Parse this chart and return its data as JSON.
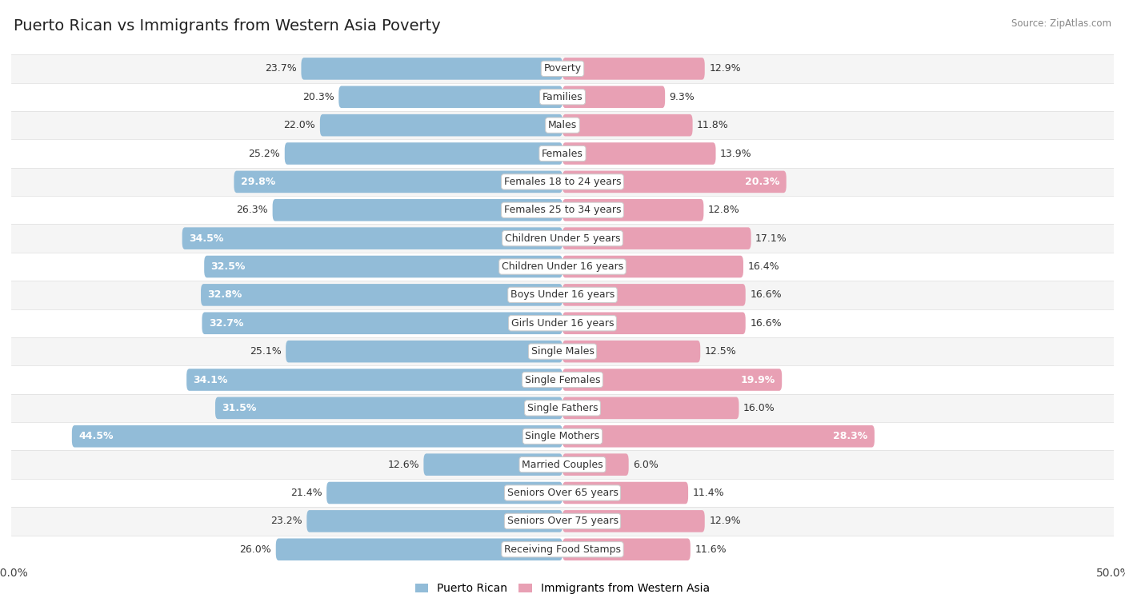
{
  "title": "Puerto Rican vs Immigrants from Western Asia Poverty",
  "source": "Source: ZipAtlas.com",
  "categories": [
    "Poverty",
    "Families",
    "Males",
    "Females",
    "Females 18 to 24 years",
    "Females 25 to 34 years",
    "Children Under 5 years",
    "Children Under 16 years",
    "Boys Under 16 years",
    "Girls Under 16 years",
    "Single Males",
    "Single Females",
    "Single Fathers",
    "Single Mothers",
    "Married Couples",
    "Seniors Over 65 years",
    "Seniors Over 75 years",
    "Receiving Food Stamps"
  ],
  "puerto_rican": [
    23.7,
    20.3,
    22.0,
    25.2,
    29.8,
    26.3,
    34.5,
    32.5,
    32.8,
    32.7,
    25.1,
    34.1,
    31.5,
    44.5,
    12.6,
    21.4,
    23.2,
    26.0
  ],
  "western_asia": [
    12.9,
    9.3,
    11.8,
    13.9,
    20.3,
    12.8,
    17.1,
    16.4,
    16.6,
    16.6,
    12.5,
    19.9,
    16.0,
    28.3,
    6.0,
    11.4,
    12.9,
    11.6
  ],
  "blue_color": "#92bcd8",
  "pink_color": "#e8a0b4",
  "bg_color": "#ffffff",
  "row_even": "#f5f5f5",
  "row_odd": "#ffffff",
  "max_val": 50.0,
  "label_fontsize": 9.0,
  "title_fontsize": 14,
  "legend_fontsize": 10,
  "pr_white_threshold": 28.0,
  "wa_white_threshold": 18.0
}
